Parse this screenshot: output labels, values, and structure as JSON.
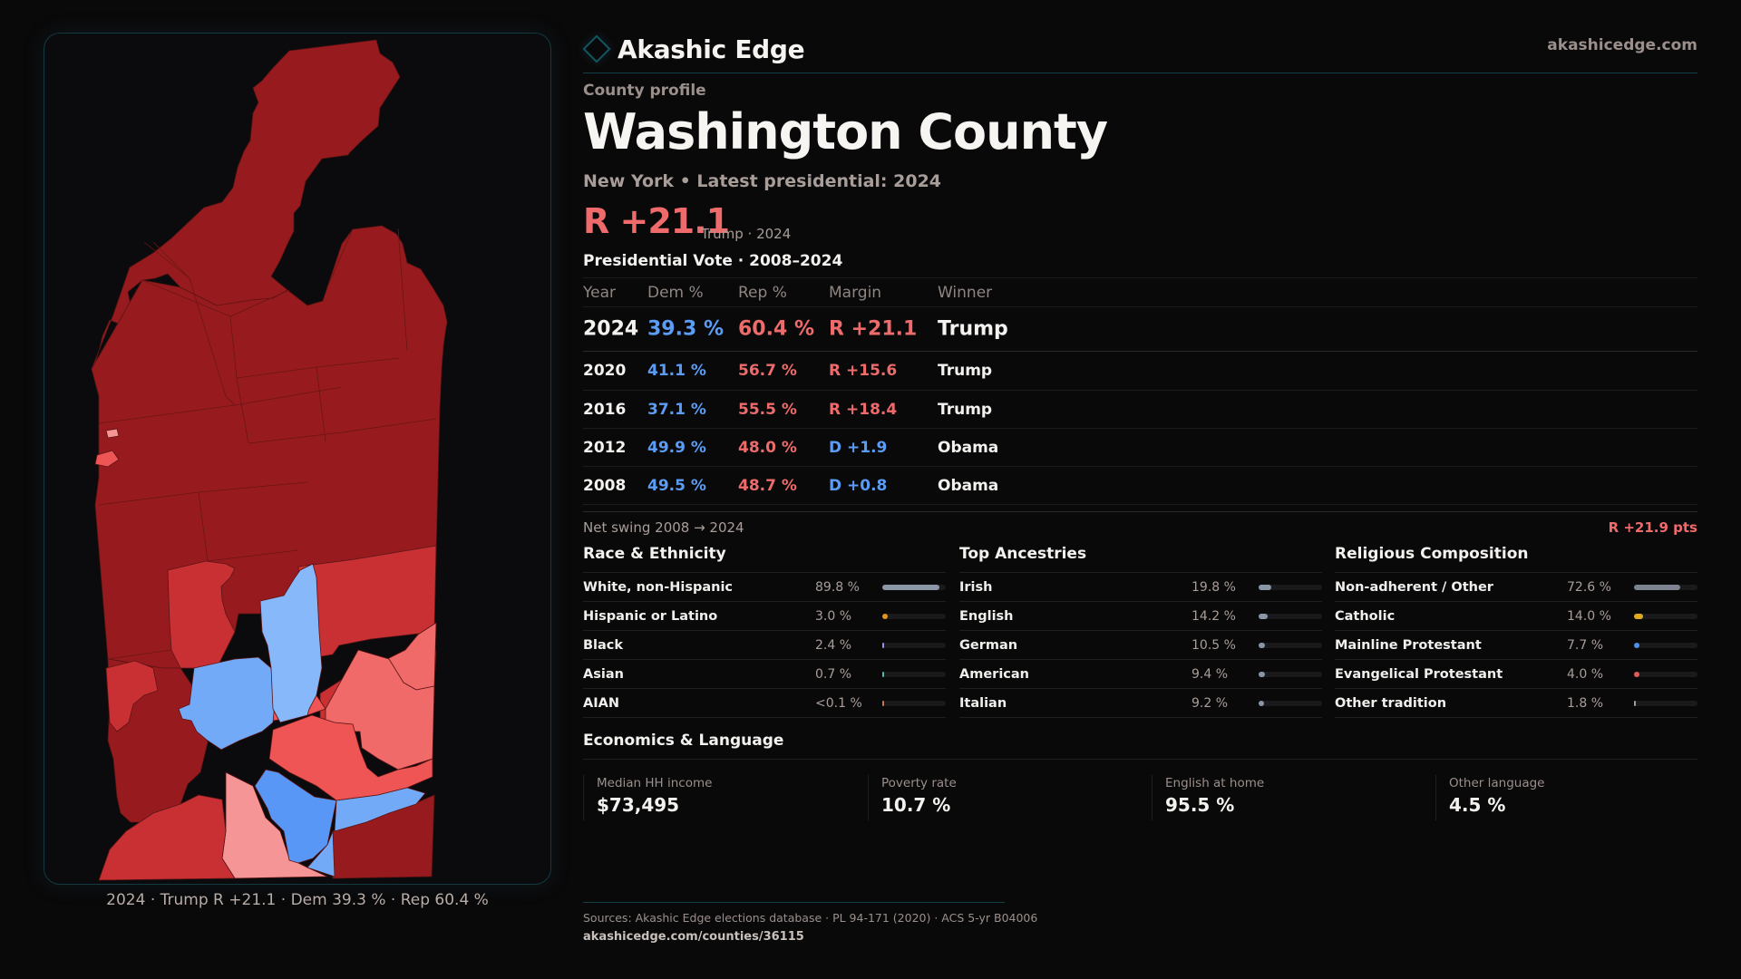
{
  "brand": {
    "name": "Akashic Edge",
    "url": "akashicedge.com",
    "logo_icon": "diamond-outline-icon",
    "accent": "#135560"
  },
  "profile": {
    "kicker": "County profile",
    "title": "Washington County",
    "subtitle": "New York  • Latest presidential: 2024",
    "headline_margin": "R +21.1",
    "headline_note": "Trump · 2024"
  },
  "colors": {
    "dem": "#5b9cf5",
    "rep": "#ee6b6b"
  },
  "vote_table": {
    "title": "Presidential Vote · 2008–2024",
    "headers": {
      "year": "Year",
      "dem": "Dem %",
      "rep": "Rep %",
      "margin": "Margin",
      "winner": "Winner"
    },
    "rows": [
      {
        "year": "2024",
        "dem": "39.3 %",
        "rep": "60.4 %",
        "margin": "R +21.1",
        "party": "rep",
        "winner": "Trump"
      },
      {
        "year": "2020",
        "dem": "41.1 %",
        "rep": "56.7 %",
        "margin": "R +15.6",
        "party": "rep",
        "winner": "Trump"
      },
      {
        "year": "2016",
        "dem": "37.1 %",
        "rep": "55.5 %",
        "margin": "R +18.4",
        "party": "rep",
        "winner": "Trump"
      },
      {
        "year": "2012",
        "dem": "49.9 %",
        "rep": "48.0 %",
        "margin": "D +1.9",
        "party": "dem",
        "winner": "Obama"
      },
      {
        "year": "2008",
        "dem": "49.5 %",
        "rep": "48.7 %",
        "margin": "D +0.8",
        "party": "dem",
        "winner": "Obama"
      }
    ]
  },
  "swing": {
    "label": "Net swing 2008 → 2024",
    "value": "R +21.9 pts"
  },
  "panels": [
    {
      "title": "Race & Ethnicity",
      "rows": [
        {
          "label": "White, non-Hispanic",
          "value": "89.8 %",
          "pct": 89.8,
          "color": "#8a95a5"
        },
        {
          "label": "Hispanic or Latino",
          "value": "3.0 %",
          "pct": 3.0,
          "color": "#e0961e"
        },
        {
          "label": "Black",
          "value": "2.4 %",
          "pct": 2.4,
          "color": "#9b8fe0"
        },
        {
          "label": "Asian",
          "value": "0.7 %",
          "pct": 0.7,
          "color": "#5bb5a8"
        },
        {
          "label": "AIAN",
          "value": "<0.1 %",
          "pct": 0.05,
          "color": "#c07a5a"
        }
      ]
    },
    {
      "title": "Top Ancestries",
      "rows": [
        {
          "label": "Irish",
          "value": "19.8 %",
          "pct": 19.8,
          "color": "#8a95a5"
        },
        {
          "label": "English",
          "value": "14.2 %",
          "pct": 14.2,
          "color": "#8a95a5"
        },
        {
          "label": "German",
          "value": "10.5 %",
          "pct": 10.5,
          "color": "#8a95a5"
        },
        {
          "label": "American",
          "value": "9.4 %",
          "pct": 9.4,
          "color": "#8a95a5"
        },
        {
          "label": "Italian",
          "value": "9.2 %",
          "pct": 9.2,
          "color": "#8a95a5"
        }
      ]
    },
    {
      "title": "Religious Composition",
      "rows": [
        {
          "label": "Non-adherent / Other",
          "value": "72.6 %",
          "pct": 72.6,
          "color": "#7c8290"
        },
        {
          "label": "Catholic",
          "value": "14.0 %",
          "pct": 14.0,
          "color": "#e0a81e"
        },
        {
          "label": "Mainline Protestant",
          "value": "7.7 %",
          "pct": 7.7,
          "color": "#4f8fe8"
        },
        {
          "label": "Evangelical Protestant",
          "value": "4.0 %",
          "pct": 4.0,
          "color": "#e05a5a"
        },
        {
          "label": "Other tradition",
          "value": "1.8 %",
          "pct": 1.8,
          "color": "#9aa0aa"
        }
      ]
    }
  ],
  "economics": {
    "title": "Economics & Language",
    "items": [
      {
        "label": "Median HH income",
        "value": "$73,495"
      },
      {
        "label": "Poverty rate",
        "value": "10.7 %"
      },
      {
        "label": "English at home",
        "value": "95.5 %"
      },
      {
        "label": "Other language",
        "value": "4.5 %"
      }
    ]
  },
  "map": {
    "caption": "2024 · Trump  R +21.1 · Dem 39.3 % · Rep 60.4 %",
    "palette": {
      "r_strong": "#971b1e",
      "r_mid": "#c83034",
      "r_lean": "#ef5555",
      "r_light": "#f06a6a",
      "r_tilt": "#f59595",
      "d_light": "#86b8fa",
      "d_lean": "#73aaf8",
      "d_mid": "#5897f5"
    }
  },
  "footer": {
    "sources": "Sources: Akashic Edge elections database · PL 94-171 (2020) · ACS 5-yr B04006",
    "url": "akashicedge.com/counties/36115"
  }
}
